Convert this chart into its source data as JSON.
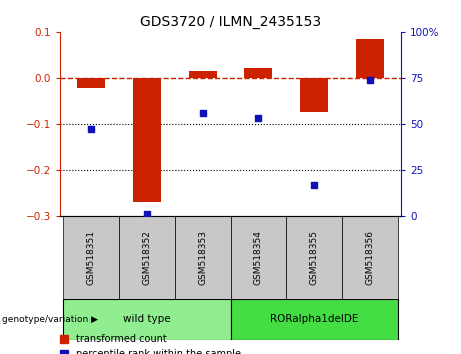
{
  "title": "GDS3720 / ILMN_2435153",
  "samples": [
    "GSM518351",
    "GSM518352",
    "GSM518353",
    "GSM518354",
    "GSM518355",
    "GSM518356"
  ],
  "red_bars": [
    -0.022,
    -0.27,
    0.015,
    0.022,
    -0.075,
    0.085
  ],
  "blue_dots_pct": [
    47,
    1,
    56,
    53,
    17,
    74
  ],
  "ylim_left": [
    -0.3,
    0.1
  ],
  "ylim_right": [
    0,
    100
  ],
  "yticks_left": [
    -0.3,
    -0.2,
    -0.1,
    0.0,
    0.1
  ],
  "yticks_right": [
    0,
    25,
    50,
    75,
    100
  ],
  "ytick_labels_right": [
    "0",
    "25",
    "50",
    "75",
    "100%"
  ],
  "groups": [
    {
      "label": "wild type",
      "start": 0,
      "end": 3,
      "color": "#90EE90"
    },
    {
      "label": "RORalpha1delDE",
      "start": 3,
      "end": 6,
      "color": "#44DD44"
    }
  ],
  "red_color": "#CC2200",
  "blue_color": "#1111BB",
  "bar_width": 0.5,
  "hline_y": 0.0,
  "dotted_lines": [
    -0.1,
    -0.2
  ],
  "sample_box_color": "#C8C8C8",
  "legend_red_label": "transformed count",
  "legend_blue_label": "percentile rank within the sample",
  "genotype_label": "genotype/variation",
  "title_fontsize": 10,
  "tick_fontsize": 7.5,
  "label_fontsize": 7
}
